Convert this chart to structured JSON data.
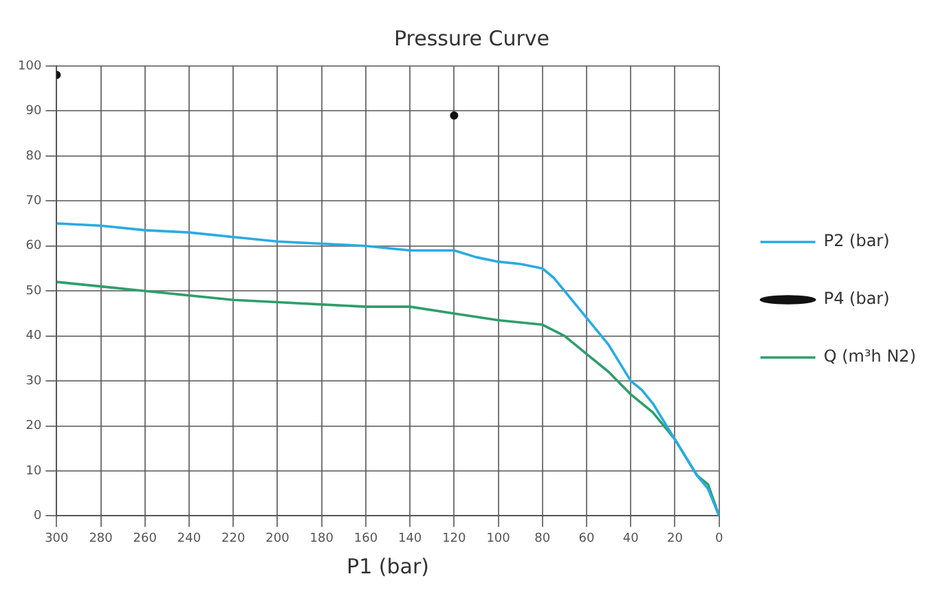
{
  "chart_data": {
    "type": "line",
    "title": "Pressure Curve",
    "xlabel": "P1 (bar)",
    "xlim": [
      300,
      0
    ],
    "xticks": [
      300,
      280,
      260,
      240,
      220,
      200,
      180,
      160,
      140,
      120,
      100,
      80,
      60,
      40,
      20,
      0
    ],
    "ylim": [
      0,
      100
    ],
    "yticks": [
      0,
      10,
      20,
      30,
      40,
      50,
      60,
      70,
      80,
      90,
      100
    ],
    "grid": true,
    "legend": "right",
    "marker": "none",
    "series": [
      {
        "name": "P2 (bar)",
        "color": "#29abe2",
        "x": [
          300,
          280,
          260,
          240,
          220,
          200,
          180,
          160,
          140,
          120,
          110,
          100,
          90,
          80,
          75,
          70,
          60,
          50,
          45,
          40,
          35,
          30,
          25,
          20,
          15,
          10,
          5,
          0
        ],
        "values": [
          65,
          64.5,
          63.5,
          63,
          62,
          61,
          60.5,
          60,
          59,
          59,
          57.5,
          56.5,
          56,
          55,
          53,
          50,
          44,
          38,
          34,
          30,
          28,
          25,
          21,
          17,
          13,
          9,
          6,
          0
        ]
      },
      {
        "name": "P4 (bar)",
        "type": "scatter",
        "marker": "circle",
        "color": "#111111",
        "x": [
          300,
          120
        ],
        "values": [
          98,
          89
        ]
      },
      {
        "name": "Q (m³h N2)",
        "color": "#2e9e6a",
        "x": [
          300,
          280,
          260,
          240,
          220,
          200,
          180,
          160,
          140,
          120,
          100,
          80,
          70,
          60,
          50,
          40,
          30,
          20,
          10,
          5,
          0
        ],
        "values": [
          52,
          51,
          50,
          49,
          48,
          47.5,
          47,
          46.5,
          46.5,
          45,
          43.5,
          42.5,
          40,
          36,
          32,
          27,
          23,
          17,
          9,
          7,
          0
        ]
      }
    ]
  }
}
